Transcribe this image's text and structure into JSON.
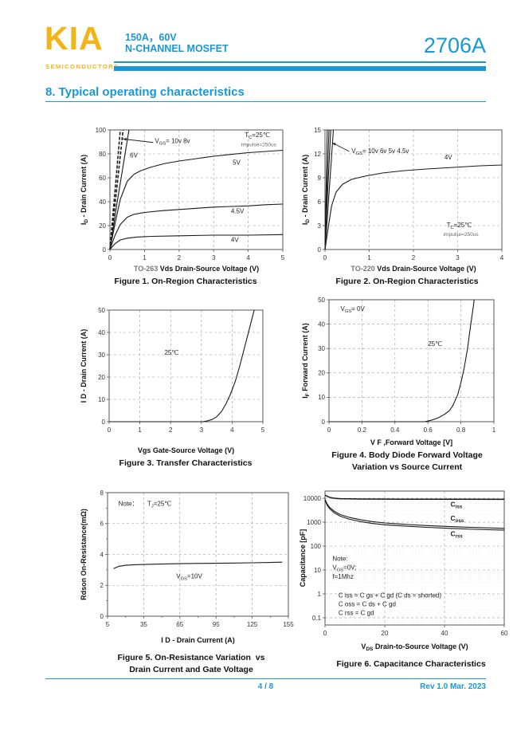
{
  "header": {
    "logo_text": "KIA",
    "logo_subtext": "SEMICONDUCTORS",
    "rating": "150A，60V",
    "device_type": "N-CHANNEL MOSFET",
    "part_number": "2706A"
  },
  "section_title": "8. Typical operating characteristics",
  "footer": {
    "page": "4 / 8",
    "revision": "Rev 1.0 Mar. 2023"
  },
  "colors": {
    "accent": "#1898D5",
    "brand_yellow": "#F2B416",
    "curve": "#1a1a1a",
    "grid": "#999999",
    "text": "#111111"
  },
  "chart_data": [
    {
      "id": "figure-1",
      "type": "line",
      "yscale": "linear",
      "xlim": [
        0,
        5
      ],
      "ylim": [
        0,
        100
      ],
      "xticks": [
        0,
        1,
        2,
        3,
        4,
        5
      ],
      "yticks": [
        0,
        20,
        40,
        60,
        80,
        100
      ],
      "xlabel_prefix": "TO-263 ",
      "xlabel": "Vds Drain-Source Voltage (V)",
      "ylabel": "I~D~ - Drain Current (A)",
      "caption1": "Figure 1. On-Region Characteristics",
      "caption2": "",
      "series": [
        {
          "name": "VGS=10V",
          "w": 1.6,
          "dash": "4,2",
          "points": [
            [
              0,
              0
            ],
            [
              0.12,
              40
            ],
            [
              0.3,
              100
            ]
          ]
        },
        {
          "name": "VGS=8V",
          "w": 1.6,
          "dash": "4,2",
          "points": [
            [
              0,
              0
            ],
            [
              0.15,
              38
            ],
            [
              0.38,
              100
            ]
          ]
        },
        {
          "name": "VGS=6V",
          "points": [
            [
              0,
              0
            ],
            [
              0.2,
              38
            ],
            [
              0.55,
              100
            ]
          ]
        },
        {
          "name": "VGS=5V",
          "points": [
            [
              0,
              0
            ],
            [
              0.15,
              22
            ],
            [
              0.3,
              42
            ],
            [
              0.5,
              57
            ],
            [
              0.7,
              63
            ],
            [
              0.9,
              66
            ],
            [
              1.2,
              69
            ],
            [
              1.6,
              72
            ],
            [
              2,
              74
            ],
            [
              2.5,
              76
            ],
            [
              3,
              78
            ],
            [
              3.5,
              79.5
            ],
            [
              4,
              81
            ],
            [
              4.5,
              82
            ],
            [
              5,
              83
            ]
          ]
        },
        {
          "name": "VGS=4.5V",
          "points": [
            [
              0,
              0
            ],
            [
              0.15,
              12
            ],
            [
              0.3,
              21
            ],
            [
              0.5,
              27
            ],
            [
              0.7,
              29.5
            ],
            [
              1,
              31
            ],
            [
              1.5,
              32.5
            ],
            [
              2,
              33.5
            ],
            [
              2.5,
              34.5
            ],
            [
              3,
              35.5
            ],
            [
              3.5,
              36
            ],
            [
              4,
              36.5
            ],
            [
              4.5,
              37.5
            ],
            [
              5,
              38
            ]
          ]
        },
        {
          "name": "VGS=4V",
          "points": [
            [
              0,
              0
            ],
            [
              0.15,
              5
            ],
            [
              0.3,
              8
            ],
            [
              0.5,
              9.5
            ],
            [
              0.8,
              10.5
            ],
            [
              1.2,
              11
            ],
            [
              2,
              11.5
            ],
            [
              3,
              12
            ],
            [
              4,
              12
            ],
            [
              5,
              12.5
            ]
          ]
        }
      ],
      "annotations": [
        {
          "t": "V~GS~= 10v 8v",
          "x": 1.3,
          "y": 89
        },
        {
          "t": "6V",
          "x": 0.58,
          "y": 77
        },
        {
          "t": "T~C~=25℃",
          "x": 3.9,
          "y": 94
        },
        {
          "t": "impulse=250us",
          "x": 3.8,
          "y": 86.5,
          "size": 6.5,
          "color": "#666666"
        },
        {
          "t": "5V",
          "x": 3.55,
          "y": 71
        },
        {
          "t": "4.5V",
          "x": 3.5,
          "y": 30.5
        },
        {
          "t": "4V",
          "x": 3.5,
          "y": 6.5
        }
      ],
      "arrows": [
        {
          "x1": 1.25,
          "y1": 89.5,
          "x2": 0.37,
          "y2": 92.5
        }
      ]
    },
    {
      "id": "figure-2",
      "type": "line",
      "yscale": "linear",
      "xlim": [
        0,
        4
      ],
      "ylim": [
        0,
        15
      ],
      "xticks": [
        0,
        1,
        2,
        3,
        4
      ],
      "yticks": [
        0,
        3,
        6,
        9,
        12,
        15
      ],
      "xlabel_prefix": "TO-220 ",
      "xlabel": "Vds Drain-Source Voltage (V)",
      "ylabel": "I~D~ - Drain Current (A)",
      "caption1": "Figure 2. On-Region Characteristics",
      "caption2": "",
      "series": [
        {
          "name": "VGS=10V",
          "points": [
            [
              0,
              0
            ],
            [
              0.02,
              6
            ],
            [
              0.05,
              15
            ]
          ]
        },
        {
          "name": "VGS=6V",
          "points": [
            [
              0,
              0
            ],
            [
              0.03,
              5.5
            ],
            [
              0.09,
              15
            ]
          ]
        },
        {
          "name": "VGS=5V",
          "points": [
            [
              0,
              0
            ],
            [
              0.04,
              5
            ],
            [
              0.13,
              15
            ]
          ]
        },
        {
          "name": "VGS=4.5V",
          "points": [
            [
              0,
              0
            ],
            [
              0.06,
              4.5
            ],
            [
              0.19,
              15
            ]
          ]
        },
        {
          "name": "VGS=4V",
          "points": [
            [
              0,
              0
            ],
            [
              0.08,
              3
            ],
            [
              0.15,
              5.5
            ],
            [
              0.25,
              7.2
            ],
            [
              0.4,
              8.2
            ],
            [
              0.6,
              8.8
            ],
            [
              0.9,
              9.2
            ],
            [
              1.3,
              9.6
            ],
            [
              1.8,
              9.9
            ],
            [
              2.3,
              10.1
            ],
            [
              2.9,
              10.3
            ],
            [
              3.5,
              10.5
            ],
            [
              4,
              10.6
            ]
          ]
        }
      ],
      "annotations": [
        {
          "t": "V~GS~= 10v 6v 5v 4.5v",
          "x": 0.6,
          "y": 12.1
        },
        {
          "t": "4V",
          "x": 2.7,
          "y": 11.3
        },
        {
          "t": "T~C~=25℃",
          "x": 2.75,
          "y": 2.8
        },
        {
          "t": "impulse=250us",
          "x": 2.68,
          "y": 1.7,
          "size": 6.5,
          "color": "#666666"
        }
      ],
      "arrows": [
        {
          "x1": 0.55,
          "y1": 12.3,
          "x2": 0.16,
          "y2": 13.4
        }
      ]
    },
    {
      "id": "figure-3",
      "type": "line",
      "yscale": "linear",
      "xlim": [
        0,
        5
      ],
      "ylim": [
        0,
        50
      ],
      "xticks": [
        0,
        1,
        2,
        3,
        4,
        5
      ],
      "yticks": [
        0,
        10,
        20,
        30,
        40,
        50
      ],
      "xlabel": "Vgs Gate-Source Voltage (V)",
      "ylabel": "I D - Drain Current (A)",
      "caption1": "Figure 3. Transfer Characteristics",
      "caption2": "",
      "series": [
        {
          "name": "25C",
          "points": [
            [
              0,
              0
            ],
            [
              3.05,
              0
            ],
            [
              3.2,
              0.4
            ],
            [
              3.35,
              1
            ],
            [
              3.5,
              2.2
            ],
            [
              3.65,
              4.5
            ],
            [
              3.8,
              8
            ],
            [
              3.95,
              12.5
            ],
            [
              4.1,
              18
            ],
            [
              4.25,
              25
            ],
            [
              4.4,
              33
            ],
            [
              4.55,
              41
            ],
            [
              4.68,
              48
            ],
            [
              4.72,
              50
            ]
          ]
        }
      ],
      "annotations": [
        {
          "t": "25℃",
          "x": 1.8,
          "y": 30
        }
      ],
      "arrows": []
    },
    {
      "id": "figure-4",
      "type": "line",
      "yscale": "linear",
      "xlim": [
        0,
        1
      ],
      "ylim": [
        0,
        50
      ],
      "xticks": [
        0,
        0.2,
        0.4,
        0.6,
        0.8,
        1
      ],
      "yticks": [
        0,
        10,
        20,
        30,
        40,
        50
      ],
      "xlabel": "V F ,Forward Voltage [V]",
      "ylabel": "I~F~ Forward Current (A)",
      "caption1": "Figure 4. Body Diode Forward Voltage",
      "caption2": "Variation vs Source Current",
      "series": [
        {
          "name": "25C",
          "points": [
            [
              0,
              0
            ],
            [
              0.58,
              0
            ],
            [
              0.62,
              0.6
            ],
            [
              0.66,
              1.5
            ],
            [
              0.7,
              3
            ],
            [
              0.73,
              4.5
            ],
            [
              0.75,
              6.5
            ],
            [
              0.78,
              11
            ],
            [
              0.8,
              16
            ],
            [
              0.82,
              22
            ],
            [
              0.84,
              30
            ],
            [
              0.86,
              40
            ],
            [
              0.875,
              47
            ],
            [
              0.88,
              50
            ]
          ]
        }
      ],
      "annotations": [
        {
          "t": "V~GS~= 0V",
          "x": 0.07,
          "y": 45.5
        },
        {
          "t": "25℃",
          "x": 0.6,
          "y": 31
        }
      ],
      "arrows": []
    },
    {
      "id": "figure-5",
      "type": "line",
      "yscale": "linear",
      "xlim": [
        5,
        155
      ],
      "ylim": [
        0,
        8
      ],
      "xticks": [
        5,
        35,
        65,
        95,
        125,
        155
      ],
      "yticks": [
        0,
        2,
        4,
        6,
        8
      ],
      "xminor": [
        20,
        50,
        80,
        110,
        140
      ],
      "yminor": [
        1,
        3,
        5,
        7
      ],
      "xlabel": "I D - Drain Current (A)",
      "ylabel": "Rdson On-Resistance(mΩ)",
      "caption1": "Figure 5. On-Resistance Variation  vs",
      "caption2": "Drain Current and Gate Voltage",
      "series": [
        {
          "name": "VGS=10V",
          "points": [
            [
              10,
              3.08
            ],
            [
              14,
              3.22
            ],
            [
              20,
              3.3
            ],
            [
              30,
              3.34
            ],
            [
              45,
              3.37
            ],
            [
              65,
              3.4
            ],
            [
              85,
              3.42
            ],
            [
              105,
              3.44
            ],
            [
              125,
              3.46
            ],
            [
              140,
              3.48
            ],
            [
              150,
              3.5
            ]
          ]
        }
      ],
      "annotations": [
        {
          "t": "Note：",
          "x": 14,
          "y": 7.15
        },
        {
          "t": "T~J~=25℃",
          "x": 38,
          "y": 7.15
        },
        {
          "t": "V~GS~=10V",
          "x": 62,
          "y": 2.45
        }
      ],
      "arrows": []
    },
    {
      "id": "figure-6",
      "type": "line",
      "yscale": "log",
      "xlim": [
        0,
        60
      ],
      "ylim": [
        0.05,
        20000
      ],
      "xticks": [
        0,
        20,
        40,
        60
      ],
      "yticks": [
        0.1,
        1,
        10,
        100,
        1000,
        10000
      ],
      "xlabel": "V~DS~  Drain-to-Source Voltage (V)",
      "ylabel": "Capacitance [pF]",
      "caption1": "Figure 6. Capacitance Characteristics",
      "caption2": "",
      "series": [
        {
          "name": "Ciss",
          "w": 1.5,
          "points": [
            [
              0,
              13500
            ],
            [
              0.7,
              12200
            ],
            [
              1.5,
              11000
            ],
            [
              3,
              10000
            ],
            [
              5,
              9600
            ],
            [
              8,
              9400
            ],
            [
              12,
              9300
            ],
            [
              20,
              9200
            ],
            [
              30,
              9100
            ],
            [
              45,
              9050
            ],
            [
              60,
              9000
            ]
          ]
        },
        {
          "name": "Coss",
          "points": [
            [
              0,
              9000
            ],
            [
              0.7,
              5800
            ],
            [
              1.5,
              4200
            ],
            [
              3,
              2900
            ],
            [
              5,
              2100
            ],
            [
              8,
              1600
            ],
            [
              12,
              1250
            ],
            [
              16,
              1050
            ],
            [
              20,
              930
            ],
            [
              26,
              820
            ],
            [
              34,
              720
            ],
            [
              42,
              650
            ],
            [
              50,
              600
            ],
            [
              60,
              550
            ]
          ]
        },
        {
          "name": "Crss",
          "points": [
            [
              0,
              8300
            ],
            [
              0.7,
              5200
            ],
            [
              1.5,
              3700
            ],
            [
              3,
              2500
            ],
            [
              5,
              1800
            ],
            [
              8,
              1350
            ],
            [
              12,
              1050
            ],
            [
              16,
              880
            ],
            [
              20,
              780
            ],
            [
              26,
              690
            ],
            [
              34,
              610
            ],
            [
              42,
              550
            ],
            [
              50,
              500
            ],
            [
              60,
              460
            ]
          ]
        }
      ],
      "annotations": [
        {
          "t": "C~iss~",
          "x": 42,
          "y": 4500,
          "b": 1,
          "size": 8.5
        },
        {
          "t": "C~oss~",
          "x": 42,
          "y": 1150,
          "b": 1,
          "size": 8.5
        },
        {
          "t": "C~rss~",
          "x": 42,
          "y": 260,
          "b": 1,
          "size": 8.5
        },
        {
          "t": "Note:",
          "x": 2.5,
          "y": 24
        },
        {
          "t": "V~GS~=0V;",
          "x": 2.5,
          "y": 10.5
        },
        {
          "t": "f=1Mhz",
          "x": 2.5,
          "y": 4.3
        },
        {
          "t": "C iss = C gs + C gd (C ds = shorted)",
          "x": 4.5,
          "y": 0.72
        },
        {
          "t": "C oss = C ds + C gd",
          "x": 4.5,
          "y": 0.3
        },
        {
          "t": "C rss = C gd",
          "x": 4.5,
          "y": 0.13
        }
      ],
      "arrows": []
    }
  ]
}
